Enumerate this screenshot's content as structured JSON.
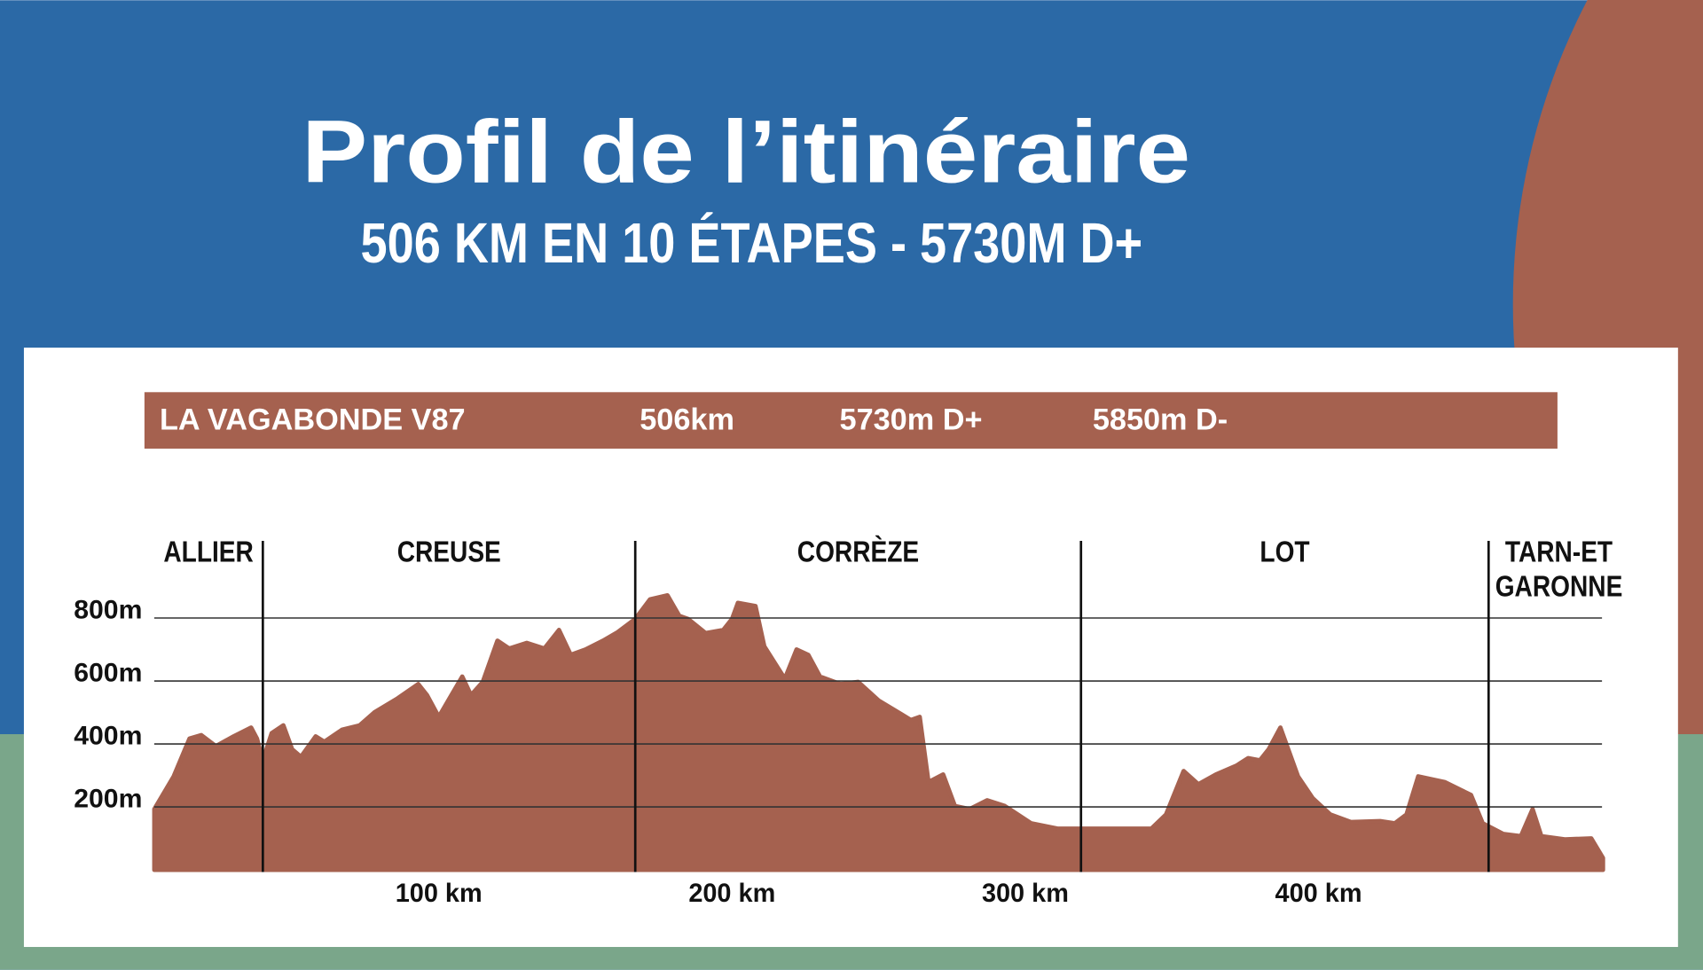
{
  "chart_data": {
    "type": "area",
    "title": "Profil de l’itinéraire",
    "subtitle": "506 KM EN 10 ÉTAPES - 5730M D+",
    "banner": [
      "LA VAGABONDE V87",
      "506km",
      "5730m D+",
      "5850m D-"
    ],
    "regions": [
      {
        "lines": [
          "ALLIER"
        ]
      },
      {
        "lines": [
          "CREUSE"
        ]
      },
      {
        "lines": [
          "CORRÈZE"
        ]
      },
      {
        "lines": [
          "LOT"
        ]
      },
      {
        "lines": [
          "TARN-ET",
          "GARONNE"
        ]
      }
    ],
    "region_boundaries": [
      40,
      167,
      319,
      458
    ],
    "color": "#a5614f",
    "x": [
      3,
      9.6,
      15,
      19,
      24,
      30,
      36,
      38,
      40,
      43,
      47,
      50,
      53,
      58,
      61,
      67,
      73,
      78,
      86,
      93,
      96,
      100,
      108,
      111,
      115,
      120,
      124,
      130,
      136,
      141,
      145,
      150,
      156,
      161,
      167,
      172,
      178,
      182,
      185,
      191,
      197,
      200,
      202,
      208,
      211,
      218,
      222,
      226,
      230,
      237,
      243,
      250,
      261,
      264,
      267,
      272,
      276,
      281,
      287,
      293,
      302,
      311,
      321,
      343,
      348,
      354,
      359,
      365,
      372,
      376,
      380,
      383,
      387,
      393,
      398,
      404,
      411,
      421,
      426,
      430,
      434,
      443,
      452,
      456,
      463,
      469,
      473,
      476,
      484,
      493,
      497
    ],
    "values": [
      193,
      297,
      417,
      428,
      393,
      424,
      452,
      417,
      348,
      434,
      459,
      383,
      359,
      424,
      407,
      445,
      459,
      500,
      545,
      590,
      555,
      486,
      614,
      555,
      597,
      728,
      703,
      721,
      703,
      762,
      683,
      700,
      728,
      755,
      797,
      859,
      872,
      807,
      797,
      752,
      762,
      797,
      848,
      838,
      710,
      607,
      700,
      683,
      614,
      590,
      597,
      538,
      476,
      486,
      279,
      303,
      203,
      193,
      221,
      203,
      148,
      131,
      131,
      131,
      176,
      314,
      272,
      303,
      331,
      355,
      348,
      383,
      452,
      297,
      228,
      176,
      152,
      155,
      148,
      176,
      297,
      279,
      238,
      148,
      114,
      107,
      193,
      107,
      97,
      100,
      38
    ],
    "xlim": [
      0,
      500
    ],
    "ylim": [
      0,
      1000
    ],
    "xticks": [
      {
        "value": 100,
        "label": "100 km"
      },
      {
        "value": 200,
        "label": "200 km"
      },
      {
        "value": 300,
        "label": "300 km"
      },
      {
        "value": 400,
        "label": "400 km"
      }
    ],
    "yticks": [
      {
        "value": 200,
        "label": "200m"
      },
      {
        "value": 400,
        "label": "400m"
      },
      {
        "value": 600,
        "label": "600m"
      },
      {
        "value": 800,
        "label": "800m"
      }
    ],
    "grid": true
  }
}
